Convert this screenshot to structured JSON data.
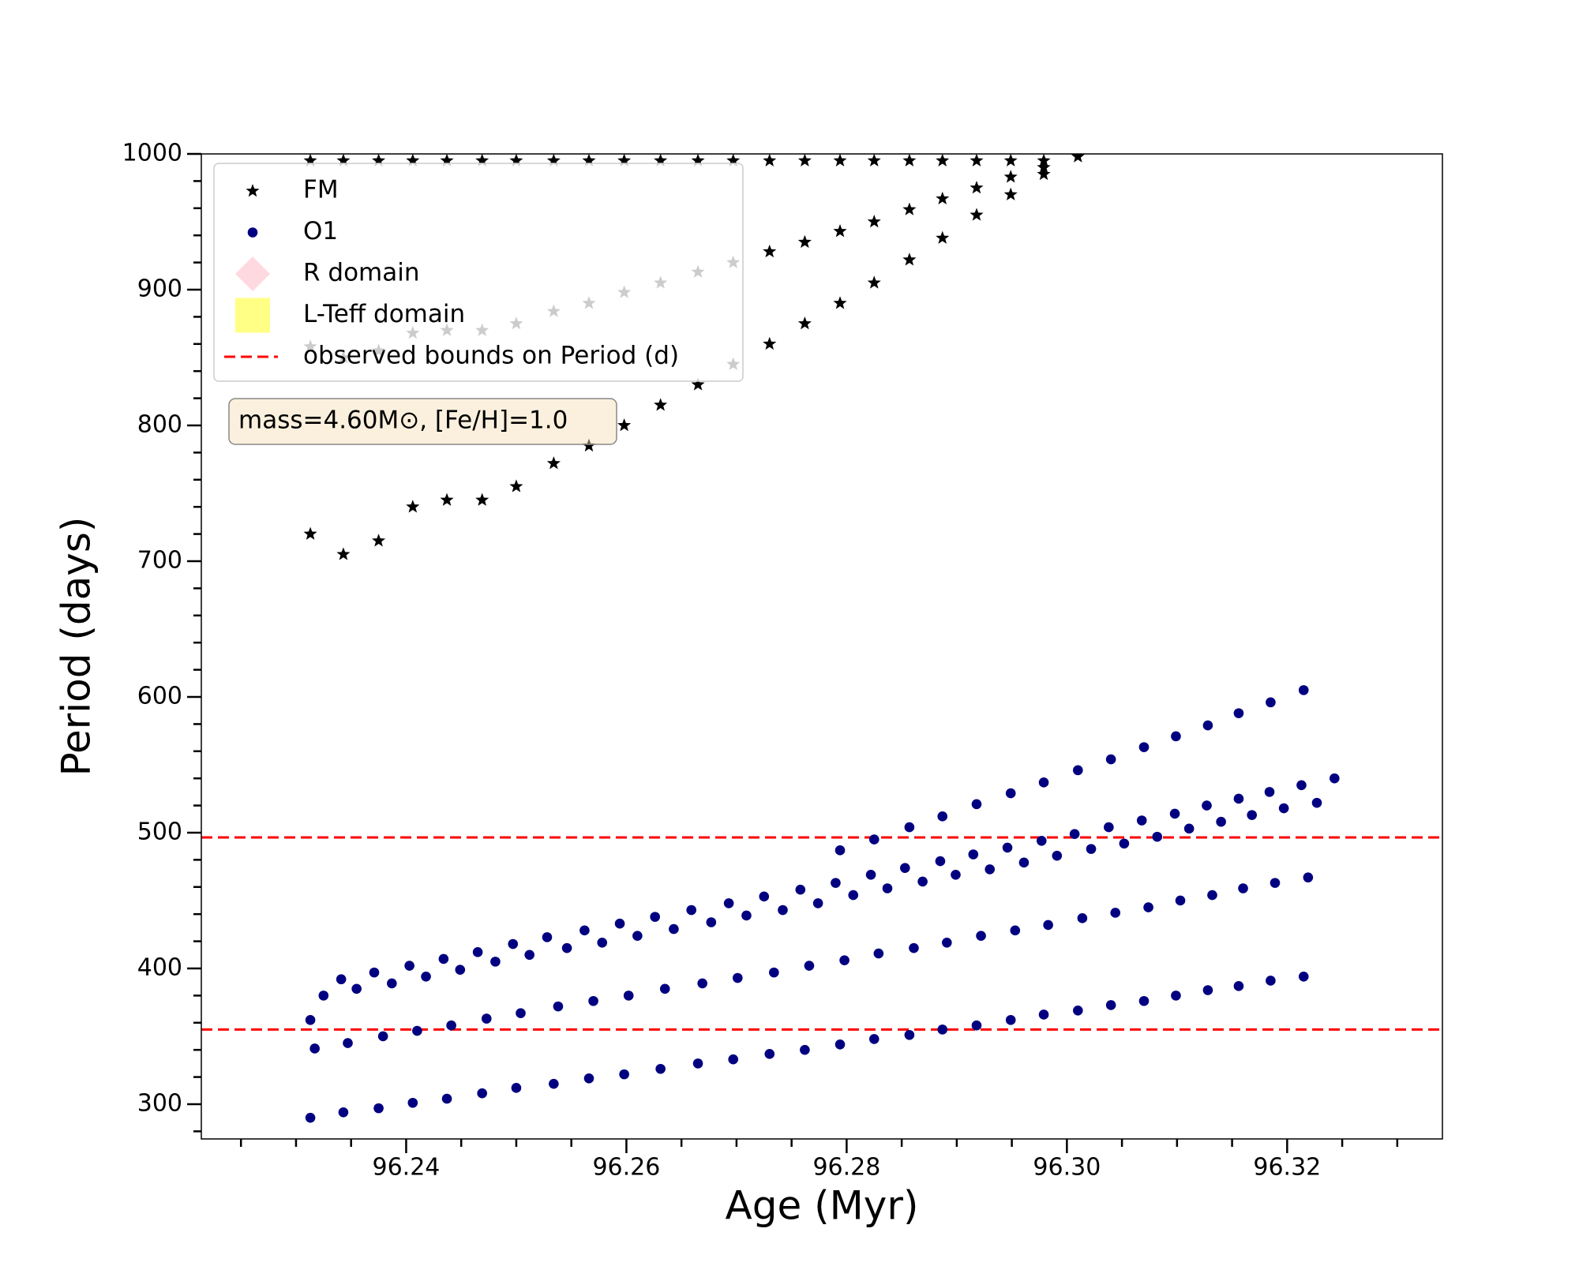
{
  "chart_data": {
    "type": "scatter",
    "xlabel": "Age (Myr)",
    "ylabel": "Period (days)",
    "annotation": "mass=4.60M⊙, [Fe/H]=1.0",
    "xlim": [
      96.2214,
      96.3341
    ],
    "ylim": [
      274.4,
      1000
    ],
    "xticks": [
      96.24,
      96.26,
      96.28,
      {
        "value": 96.3,
        "label": "96.30"
      },
      96.32
    ],
    "xminorticks": [
      96.225,
      96.23,
      96.235,
      96.245,
      96.25,
      96.255,
      96.265,
      96.27,
      96.275,
      96.285,
      96.29,
      96.295,
      96.305,
      96.31,
      96.315,
      96.325,
      96.33
    ],
    "yticks": [
      300,
      400,
      500,
      600,
      700,
      800,
      900,
      1000
    ],
    "yminorticks": [
      280,
      320,
      340,
      360,
      380,
      420,
      440,
      460,
      480,
      520,
      540,
      560,
      580,
      620,
      640,
      660,
      680,
      720,
      740,
      760,
      780,
      820,
      840,
      860,
      880,
      920,
      940,
      960,
      980
    ],
    "grid": false,
    "legend": "upper left",
    "series": [
      {
        "name": "FM",
        "color": "#000000",
        "marker": "star",
        "x": [
          96.2313,
          96.2313,
          96.2313,
          96.2343,
          96.2343,
          96.2343,
          96.2375,
          96.2375,
          96.2375,
          96.2406,
          96.2406,
          96.2406,
          96.2437,
          96.2437,
          96.2437,
          96.2469,
          96.2469,
          96.2469,
          96.25,
          96.25,
          96.25,
          96.2534,
          96.2534,
          96.2534,
          96.2566,
          96.2566,
          96.2566,
          96.2598,
          96.2598,
          96.2598,
          96.2631,
          96.2631,
          96.2631,
          96.2665,
          96.2665,
          96.2665,
          96.2697,
          96.2697,
          96.2697,
          96.273,
          96.273,
          96.273,
          96.2762,
          96.2762,
          96.2762,
          96.2794,
          96.2794,
          96.2794,
          96.2825,
          96.2825,
          96.2825,
          96.2857,
          96.2857,
          96.2857,
          96.2887,
          96.2887,
          96.2887,
          96.2918,
          96.2918,
          96.2918,
          96.2949,
          96.2949,
          96.2949,
          96.2979,
          96.2979,
          96.2979,
          96.301
        ],
        "values": [
          720,
          858,
          995,
          705,
          850,
          995,
          715,
          855,
          995,
          740,
          868,
          995,
          745,
          870,
          995,
          745,
          870,
          995,
          755,
          875,
          995,
          772,
          884,
          995,
          785,
          890,
          995,
          800,
          898,
          995,
          815,
          905,
          995,
          830,
          913,
          995,
          845,
          920,
          995,
          860,
          928,
          995,
          875,
          935,
          995,
          890,
          943,
          995,
          905,
          950,
          995,
          922,
          959,
          995,
          938,
          967,
          995,
          955,
          975,
          995,
          970,
          983,
          995,
          985,
          990,
          995,
          998
        ]
      },
      {
        "name": "O1",
        "color": "#000080",
        "marker": "dot",
        "x": [
          96.2313,
          96.2313,
          96.2317,
          96.2325,
          96.2341,
          96.2343,
          96.2347,
          96.2355,
          96.2371,
          96.2375,
          96.2379,
          96.2387,
          96.2403,
          96.2406,
          96.241,
          96.2418,
          96.2434,
          96.2437,
          96.2441,
          96.2449,
          96.2465,
          96.2469,
          96.2473,
          96.2481,
          96.2497,
          96.25,
          96.2504,
          96.2512,
          96.2528,
          96.2534,
          96.2538,
          96.2546,
          96.2562,
          96.2566,
          96.257,
          96.2578,
          96.2594,
          96.2598,
          96.2602,
          96.261,
          96.2626,
          96.2631,
          96.2635,
          96.2643,
          96.2659,
          96.2665,
          96.2669,
          96.2677,
          96.2693,
          96.2697,
          96.2701,
          96.2709,
          96.2725,
          96.273,
          96.2734,
          96.2742,
          96.2758,
          96.2762,
          96.2766,
          96.2774,
          96.279,
          96.2794,
          96.2794,
          96.2798,
          96.2806,
          96.2822,
          96.2825,
          96.2825,
          96.2829,
          96.2837,
          96.2853,
          96.2857,
          96.2857,
          96.2861,
          96.2869,
          96.2885,
          96.2887,
          96.2887,
          96.2891,
          96.2899,
          96.2915,
          96.2918,
          96.2918,
          96.2922,
          96.293,
          96.2946,
          96.2949,
          96.2949,
          96.2953,
          96.2961,
          96.2977,
          96.2979,
          96.2979,
          96.2983,
          96.2991,
          96.3007,
          96.301,
          96.301,
          96.3014,
          96.3022,
          96.3038,
          96.304,
          96.304,
          96.3044,
          96.3052,
          96.3068,
          96.307,
          96.307,
          96.3074,
          96.3082,
          96.3098,
          96.3099,
          96.3099,
          96.3103,
          96.3111,
          96.3127,
          96.3128,
          96.3128,
          96.3132,
          96.314,
          96.3156,
          96.3156,
          96.3156,
          96.316,
          96.3168,
          96.3184,
          96.3185,
          96.3185,
          96.3189,
          96.3197,
          96.3213,
          96.3215,
          96.3215,
          96.3219,
          96.3227,
          96.3243
        ],
        "values": [
          362,
          290,
          341,
          380,
          392,
          294,
          345,
          385,
          397,
          297,
          350,
          389,
          402,
          301,
          354,
          394,
          407,
          304,
          358,
          399,
          412,
          308,
          363,
          405,
          418,
          312,
          367,
          410,
          423,
          315,
          372,
          415,
          428,
          319,
          376,
          419,
          433,
          322,
          380,
          424,
          438,
          326,
          385,
          429,
          443,
          330,
          389,
          434,
          448,
          333,
          393,
          439,
          453,
          337,
          397,
          443,
          458,
          340,
          402,
          448,
          463,
          487,
          344,
          406,
          454,
          469,
          495,
          348,
          411,
          459,
          474,
          504,
          351,
          415,
          464,
          479,
          512,
          355,
          419,
          469,
          484,
          521,
          358,
          424,
          473,
          489,
          529,
          362,
          428,
          478,
          494,
          537,
          366,
          432,
          483,
          499,
          546,
          369,
          437,
          488,
          504,
          554,
          373,
          441,
          492,
          509,
          563,
          376,
          445,
          497,
          514,
          571,
          380,
          450,
          503,
          520,
          579,
          384,
          454,
          508,
          525,
          588,
          387,
          459,
          513,
          530,
          596,
          391,
          463,
          518,
          535,
          605,
          394,
          467,
          522,
          540
        ]
      },
      {
        "name": "R domain",
        "color": "#ffc0cb",
        "marker": "diamond",
        "x": [],
        "values": []
      },
      {
        "name": "L-Teff domain",
        "color": "#ffff66",
        "marker": "square",
        "x": [],
        "values": []
      }
    ],
    "hlines": {
      "name": "observed bounds on Period (d)",
      "color": "#ff0000",
      "values": [
        496.5,
        355
      ]
    }
  }
}
